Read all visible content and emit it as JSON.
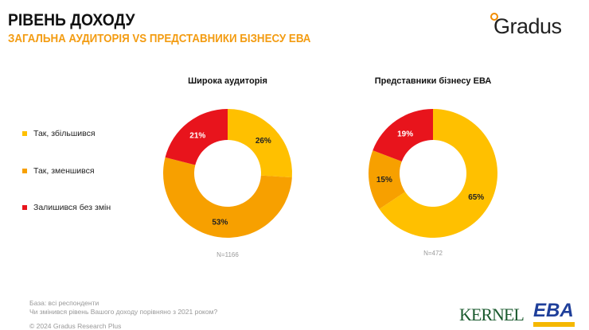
{
  "header": {
    "title": "РІВЕНЬ ДОХОДУ",
    "subtitle": "ЗАГАЛЬНА АУДИТОРІЯ VS ПРЕДСТАВНИКИ БІЗНЕСУ ЕВА",
    "logo": "Gradus"
  },
  "chart_data": [
    {
      "type": "pie",
      "donut": true,
      "title": "Широка аудиторія",
      "categories": [
        "Так, збільшився",
        "Так, зменшився",
        "Залишився без змін"
      ],
      "values": [
        26,
        53,
        21
      ],
      "colors": [
        "#FFC000",
        "#F7A000",
        "#E8141C"
      ],
      "note": "N=1166"
    },
    {
      "type": "pie",
      "donut": true,
      "title": "Представники бізнесу ЕВА",
      "categories": [
        "Так, збільшився",
        "Так, зменшився",
        "Залишився без змін"
      ],
      "values": [
        65,
        15,
        19
      ],
      "colors": [
        "#FFC000",
        "#F7A000",
        "#E8141C"
      ],
      "note": "N=472"
    }
  ],
  "legend": [
    {
      "label": "Так, збільшився",
      "color": "#FFC000"
    },
    {
      "label": "Так, зменшився",
      "color": "#F7A000"
    },
    {
      "label": "Залишився без змін",
      "color": "#E8141C"
    }
  ],
  "footer": {
    "base": "База: всі респонденти",
    "question": "Чи змінився рівень Вашого доходу порівняно з 2021 роком?",
    "copyright": "© 2024 Gradus Research Plus",
    "kernel": "KERNEL",
    "eba": "EBA"
  }
}
